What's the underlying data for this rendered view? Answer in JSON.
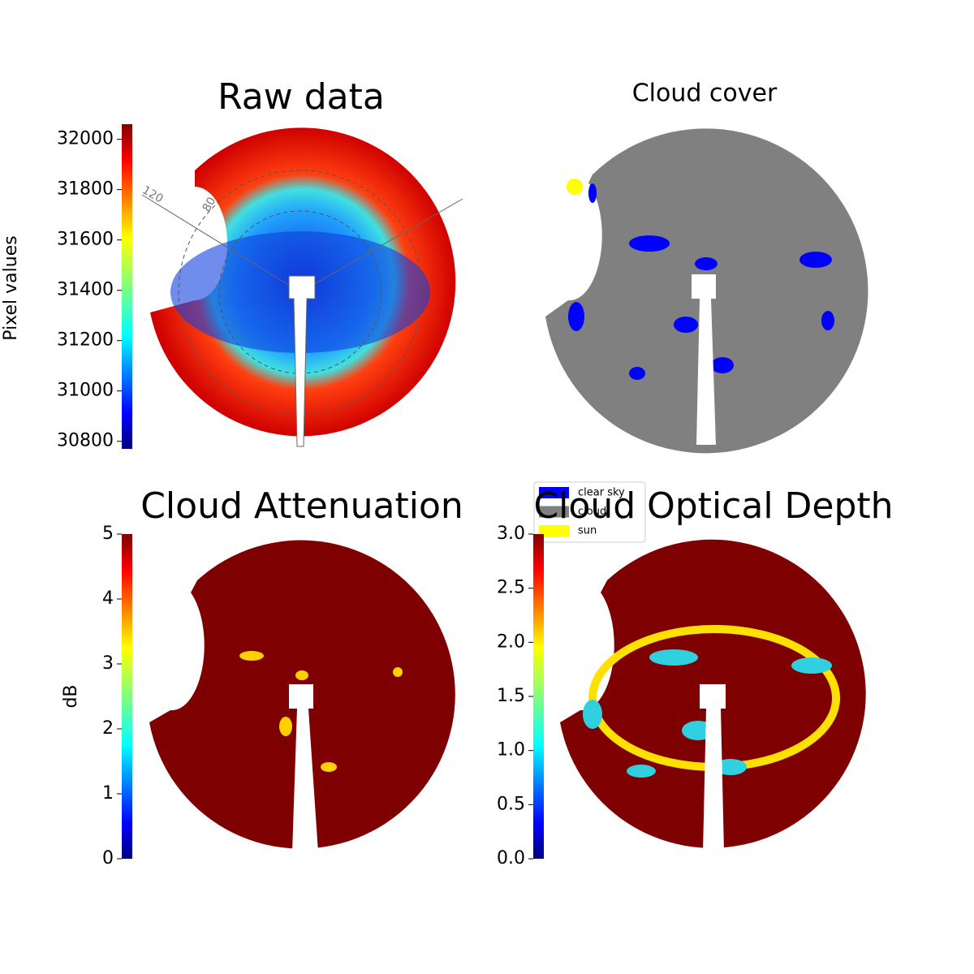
{
  "chart_data": [
    {
      "type": "image",
      "title": "Raw data",
      "colorbar_label": "Pixel values",
      "colormap": "jet",
      "clim": [
        30770,
        32060
      ],
      "cticks": [
        30800,
        31000,
        31200,
        31400,
        31600,
        31800,
        32000
      ],
      "annotations": [
        "120",
        "80"
      ]
    },
    {
      "type": "image",
      "title": "Cloud cover",
      "series": [
        {
          "name": "clear sky",
          "color": "#0000ff"
        },
        {
          "name": "cloud",
          "color": "#808080"
        },
        {
          "name": "sun",
          "color": "#ffff00"
        }
      ]
    },
    {
      "type": "image",
      "title": "Cloud Attenuation",
      "colorbar_label": "dB",
      "colormap": "jet",
      "clim": [
        0,
        5
      ],
      "cticks": [
        0,
        1,
        2,
        3,
        4,
        5
      ]
    },
    {
      "type": "image",
      "title": "Cloud Optical Depth",
      "colormap": "jet",
      "clim": [
        0,
        3
      ],
      "cticks": [
        {
          "value": 0,
          "label": "0.0"
        },
        0.5,
        {
          "value": 1,
          "label": "1.0"
        },
        1.5,
        {
          "value": 2,
          "label": "2.0"
        },
        2.5,
        {
          "value": 3,
          "label": "3.0"
        }
      ]
    }
  ]
}
